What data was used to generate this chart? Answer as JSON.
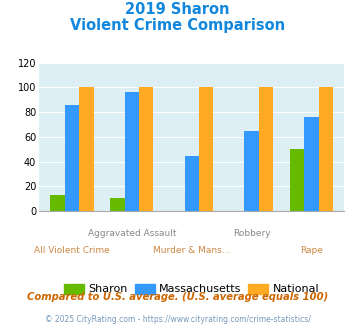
{
  "title_line1": "2019 Sharon",
  "title_line2": "Violent Crime Comparison",
  "categories": [
    "All Violent Crime",
    "Aggravated Assault",
    "Murder & Mans...",
    "Robbery",
    "Rape"
  ],
  "sharon": [
    13,
    11,
    0,
    0,
    50
  ],
  "massachusetts": [
    86,
    96,
    45,
    65,
    76
  ],
  "national": [
    100,
    100,
    100,
    100,
    100
  ],
  "sharon_color": "#66bb00",
  "mass_color": "#3399ff",
  "national_color": "#ffaa22",
  "ylim": [
    0,
    120
  ],
  "yticks": [
    0,
    20,
    40,
    60,
    80,
    100,
    120
  ],
  "legend_labels": [
    "Sharon",
    "Massachusetts",
    "National"
  ],
  "footnote1": "Compared to U.S. average. (U.S. average equals 100)",
  "footnote2": "© 2025 CityRating.com - https://www.cityrating.com/crime-statistics/",
  "title_color": "#1188dd",
  "footnote1_color": "#cc6600",
  "footnote2_color": "#7799bb",
  "bg_color": "#ddeef5",
  "fig_bg": "#ffffff",
  "bar_width": 0.24
}
